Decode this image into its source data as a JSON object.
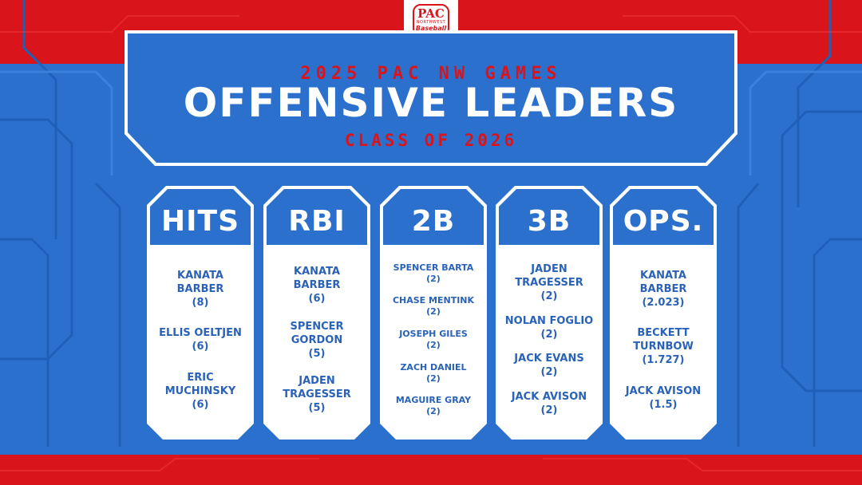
{
  "logo": {
    "main": "PAC",
    "sub": "NORTHWEST",
    "script": "Baseball"
  },
  "header": {
    "kicker": "2025 PAC NW GAMES",
    "title": "OFFENSIVE LEADERS",
    "subtitle": "CLASS OF 2026"
  },
  "colors": {
    "red": "#d9141b",
    "blue": "#2b70cd",
    "white": "#ffffff",
    "text_blue": "#2a62b8"
  },
  "categories": [
    {
      "title": "HITS",
      "entries": [
        {
          "name": "KANATA BARBER",
          "value": "(8)"
        },
        {
          "name": "ELLIS OELTJEN",
          "value": "(6)"
        },
        {
          "name": "ERIC MUCHINSKY",
          "value": "(6)"
        }
      ]
    },
    {
      "title": "RBI",
      "entries": [
        {
          "name": "KANATA BARBER",
          "value": "(6)"
        },
        {
          "name": "SPENCER GORDON",
          "value": "(5)"
        },
        {
          "name": "JADEN TRAGESSER",
          "value": "(5)"
        }
      ]
    },
    {
      "title": "2B",
      "entries": [
        {
          "name": "SPENCER BARTA",
          "value": "(2)"
        },
        {
          "name": "CHASE MENTINK",
          "value": "(2)"
        },
        {
          "name": "JOSEPH GILES",
          "value": "(2)"
        },
        {
          "name": "ZACH DANIEL",
          "value": "(2)"
        },
        {
          "name": "MAGUIRE GRAY",
          "value": "(2)"
        }
      ]
    },
    {
      "title": "3B",
      "entries": [
        {
          "name": "JADEN TRAGESSER",
          "value": "(2)"
        },
        {
          "name": "NOLAN FOGLIO",
          "value": "(2)"
        },
        {
          "name": "JACK EVANS",
          "value": "(2)"
        },
        {
          "name": "JACK AVISON",
          "value": "(2)"
        }
      ]
    },
    {
      "title": "OPS.",
      "entries": [
        {
          "name": "KANATA BARBER",
          "value": "(2.023)"
        },
        {
          "name": "BECKETT TURNBOW",
          "value": "(1.727)"
        },
        {
          "name": "JACK AVISON",
          "value": "(1.5)"
        }
      ]
    }
  ]
}
